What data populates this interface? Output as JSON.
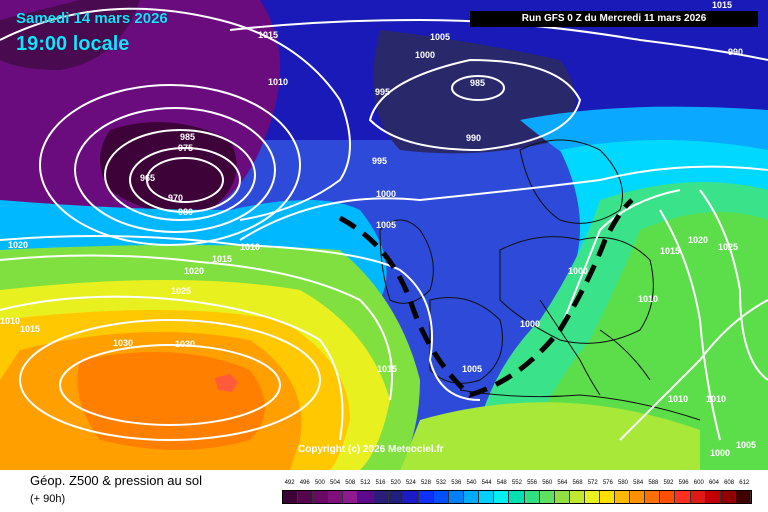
{
  "header": {
    "date": "Samedi 14 mars 2026",
    "time": "19:00 locale",
    "run": "Run GFS 0 Z du Mercredi 11 mars 2026"
  },
  "map": {
    "copyright": "Copyright (c) 2026 Meteociel.fr",
    "isobar_labels": [
      "1015",
      "1005",
      "990",
      "1000",
      "985",
      "1010",
      "990",
      "995",
      "985",
      "975",
      "965",
      "970",
      "980",
      "995",
      "1000",
      "1020",
      "1010",
      "1015",
      "1020",
      "1025",
      "1005",
      "1010",
      "1015",
      "1015",
      "1030",
      "1030",
      "1015",
      "1005",
      "1000",
      "1000",
      "1020",
      "1025",
      "1015",
      "1010",
      "1010",
      "1010",
      "1005",
      "1000"
    ]
  },
  "footer": {
    "title": "Géop. Z500 & pression au sol",
    "subtitle": "(+ 90h)",
    "scale_labels": [
      "492",
      "496",
      "500",
      "504",
      "508",
      "512",
      "516",
      "520",
      "524",
      "528",
      "532",
      "536",
      "540",
      "544",
      "548",
      "552",
      "556",
      "560",
      "564",
      "568",
      "572",
      "576",
      "580",
      "584",
      "588",
      "592",
      "596",
      "600",
      "604",
      "608",
      "612"
    ],
    "scale_colors": [
      "#3d0238",
      "#55074e",
      "#6b0a64",
      "#7f0f7a",
      "#8f1a8f",
      "#5a0a8a",
      "#2a1e7a",
      "#20207a",
      "#1a1ac8",
      "#1030ff",
      "#0050ff",
      "#0080ff",
      "#00aaff",
      "#00d0ff",
      "#00f0f0",
      "#00e0b0",
      "#30e080",
      "#60e060",
      "#90e040",
      "#c0e830",
      "#e8f020",
      "#ffe000",
      "#ffb800",
      "#ff9000",
      "#ff7000",
      "#ff5000",
      "#ff3020",
      "#e01818",
      "#c00000",
      "#900000",
      "#400000"
    ]
  }
}
